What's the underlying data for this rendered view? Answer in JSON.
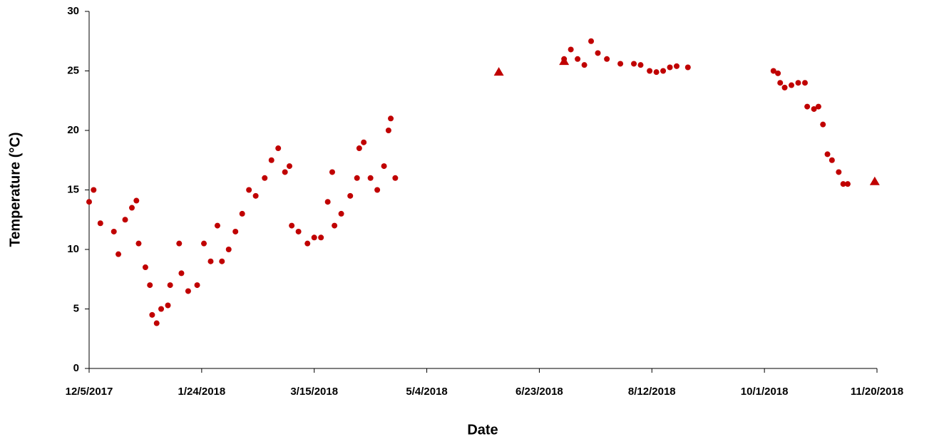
{
  "chart_data": {
    "type": "scatter",
    "xlabel": "Date",
    "ylabel": "Temperature (°C)",
    "xlim": [
      "12/5/2017",
      "11/20/2018"
    ],
    "xticks": [
      "12/5/2017",
      "1/24/2018",
      "3/15/2018",
      "5/4/2018",
      "6/23/2018",
      "8/12/2018",
      "10/1/2018",
      "11/20/2018"
    ],
    "ylim": [
      0,
      30
    ],
    "yticks": [
      0,
      5,
      10,
      15,
      20,
      25,
      30
    ],
    "series": [
      {
        "color": "#c00000",
        "marker": "circle",
        "x": [
          "12/5/2017",
          "12/7/2017",
          "12/10/2017",
          "12/16/2017",
          "12/18/2017",
          "12/21/2017",
          "12/24/2017",
          "12/26/2017",
          "12/27/2017",
          "12/30/2017",
          "1/1/2018",
          "1/2/2018",
          "1/4/2018",
          "1/6/2018",
          "1/9/2018",
          "1/10/2018",
          "1/14/2018",
          "1/15/2018",
          "1/18/2018",
          "1/22/2018",
          "1/25/2018",
          "1/28/2018",
          "1/31/2018",
          "2/2/2018",
          "2/5/2018",
          "2/8/2018",
          "2/11/2018",
          "2/14/2018",
          "2/17/2018",
          "2/21/2018",
          "2/24/2018",
          "2/27/2018",
          "3/2/2018",
          "3/4/2018",
          "3/5/2018",
          "3/8/2018",
          "3/12/2018",
          "3/15/2018",
          "3/18/2018",
          "3/21/2018",
          "3/23/2018",
          "3/24/2018",
          "3/27/2018",
          "3/31/2018",
          "4/3/2018",
          "4/4/2018",
          "4/6/2018",
          "4/9/2018",
          "4/12/2018",
          "4/15/2018",
          "4/17/2018",
          "4/18/2018",
          "4/20/2018",
          "7/4/2018",
          "7/7/2018",
          "7/10/2018",
          "7/13/2018",
          "7/16/2018",
          "7/19/2018",
          "7/23/2018",
          "7/29/2018",
          "8/4/2018",
          "8/7/2018",
          "8/11/2018",
          "8/14/2018",
          "8/17/2018",
          "8/20/2018",
          "8/23/2018",
          "8/28/2018",
          "10/5/2018",
          "10/7/2018",
          "10/8/2018",
          "10/10/2018",
          "10/13/2018",
          "10/16/2018",
          "10/19/2018",
          "10/20/2018",
          "10/23/2018",
          "10/25/2018",
          "10/27/2018",
          "10/29/2018",
          "10/31/2018",
          "11/3/2018",
          "11/5/2018",
          "11/7/2018"
        ],
        "values": [
          14,
          15,
          12.2,
          11.5,
          9.6,
          12.5,
          13.5,
          14.1,
          10.5,
          8.5,
          7,
          4.5,
          3.8,
          5,
          5.3,
          7,
          10.5,
          8,
          6.5,
          7,
          10.5,
          9,
          12,
          9,
          10,
          11.5,
          13,
          15,
          14.5,
          16,
          17.5,
          18.5,
          16.5,
          17,
          12,
          11.5,
          10.5,
          11,
          11,
          14,
          16.5,
          12,
          13,
          14.5,
          16,
          18.5,
          19,
          16,
          15,
          17,
          20,
          21,
          16,
          26,
          26.8,
          26,
          25.5,
          27.5,
          26.5,
          26,
          25.6,
          25.6,
          25.5,
          25,
          24.9,
          25,
          25.3,
          25.4,
          25.3,
          25,
          24.8,
          24,
          23.6,
          23.8,
          24,
          24,
          22,
          21.8,
          22,
          20.5,
          18,
          17.5,
          16.5,
          15.5,
          15.5
        ]
      },
      {
        "color": "#c00000",
        "marker": "triangle",
        "x": [
          "6/5/2018",
          "7/4/2018",
          "11/19/2018"
        ],
        "values": [
          24.9,
          25.8,
          15.7
        ]
      }
    ]
  }
}
